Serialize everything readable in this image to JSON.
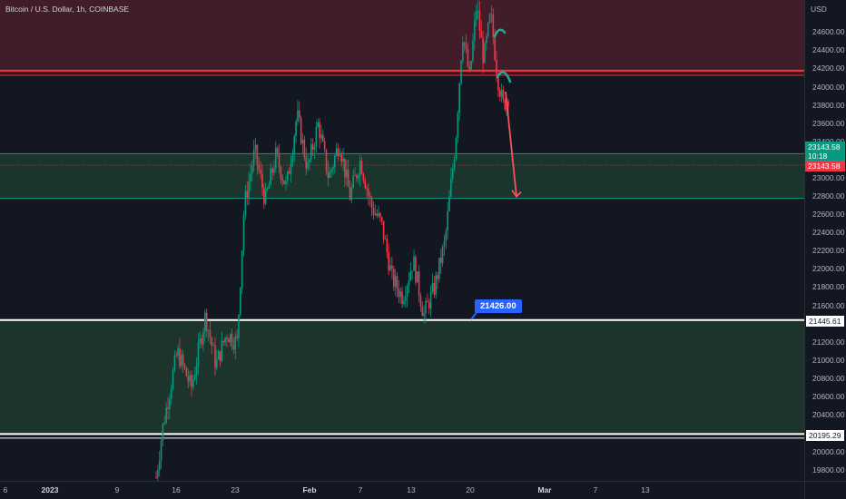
{
  "symbol_title": "Bitcoin / U.S. Dollar, 1h, COINBASE",
  "currency": "USD",
  "price_axis": {
    "ticks": [
      "24600.00",
      "24400.00",
      "24200.00",
      "24000.00",
      "23800.00",
      "23600.00",
      "23400.00",
      "23000.00",
      "22800.00",
      "22600.00",
      "22400.00",
      "22200.00",
      "22000.00",
      "21800.00",
      "21600.00",
      "21200.00",
      "21000.00",
      "20800.00",
      "20600.00",
      "20400.00",
      "20000.00",
      "19800.00"
    ],
    "badges": {
      "last_price": "23143.58",
      "countdown": "10:18",
      "red_price": "23143.58",
      "support_upper": "21445.61",
      "support_lower": "20195.29"
    }
  },
  "time_axis": {
    "ticks": [
      "6",
      "2023",
      "9",
      "16",
      "23",
      "Feb",
      "7",
      "13",
      "20",
      "Mar",
      "7",
      "13"
    ],
    "bold": [
      "2023",
      "Feb",
      "Mar"
    ]
  },
  "annotation": {
    "callout": "21426.00"
  },
  "colors": {
    "background": "#131722",
    "up": "#089981",
    "down": "#f23645",
    "resistance_zone": "#4a1f2b",
    "resistance_line": "#f23645",
    "mid_zone": "#1f3b2e",
    "support_zone": "#1f3a2d",
    "support_line": "#ffffff",
    "drawing_teal": "#22ab94",
    "drawing_arrow": "#f7525f",
    "callout": "#2962ff"
  },
  "chart_data": {
    "type": "candlestick",
    "instrument": "BTCUSD",
    "timeframe": "1h",
    "y_range": [
      19700,
      25000
    ],
    "zones": [
      {
        "kind": "resistance",
        "from": 24150,
        "to": 25000
      },
      {
        "kind": "mid",
        "from": 22780,
        "to": 23270
      },
      {
        "kind": "support",
        "from": 20195.29,
        "to": 21445.61
      }
    ],
    "levels": [
      24180,
      23143.58,
      21445.61,
      20195.29
    ],
    "path_points": [
      [
        0.0,
        19720
      ],
      [
        0.02,
        20300
      ],
      [
        0.06,
        21100
      ],
      [
        0.1,
        20700
      ],
      [
        0.14,
        21500
      ],
      [
        0.17,
        20950
      ],
      [
        0.2,
        21300
      ],
      [
        0.23,
        21200
      ],
      [
        0.25,
        22700
      ],
      [
        0.28,
        23300
      ],
      [
        0.31,
        22750
      ],
      [
        0.34,
        23250
      ],
      [
        0.37,
        22900
      ],
      [
        0.4,
        23700
      ],
      [
        0.43,
        23100
      ],
      [
        0.46,
        23600
      ],
      [
        0.49,
        23000
      ],
      [
        0.52,
        23400
      ],
      [
        0.55,
        22800
      ],
      [
        0.58,
        23200
      ],
      [
        0.61,
        22700
      ],
      [
        0.64,
        22500
      ],
      [
        0.67,
        21900
      ],
      [
        0.7,
        21700
      ],
      [
        0.73,
        22100
      ],
      [
        0.76,
        21500
      ],
      [
        0.79,
        21800
      ],
      [
        0.82,
        22300
      ],
      [
        0.85,
        23400
      ],
      [
        0.87,
        24600
      ],
      [
        0.89,
        24100
      ],
      [
        0.91,
        24900
      ],
      [
        0.93,
        24300
      ],
      [
        0.95,
        24800
      ],
      [
        0.97,
        24100
      ],
      [
        0.985,
        23800
      ],
      [
        1.0,
        23900
      ]
    ],
    "projection": [
      [
        0,
        23950
      ],
      [
        1,
        22800
      ]
    ]
  }
}
